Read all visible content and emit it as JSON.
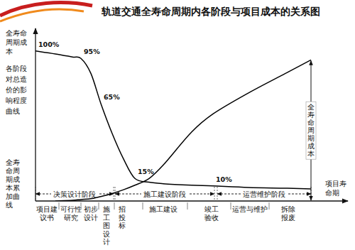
{
  "chart_data": {
    "type": "line",
    "title": "轨道交通全寿命周期内各阶段与项目成本的关系图",
    "y_label": "全寿命周期成本",
    "x_label": "项目寿命期",
    "x": [
      0,
      7,
      13,
      16,
      19.5,
      23,
      27,
      31,
      35,
      40,
      45,
      55,
      62.5,
      75,
      88,
      97
    ],
    "xlim": [
      0,
      110
    ],
    "ylim": [
      0,
      115
    ],
    "tick_labels": false,
    "data_labels": true,
    "series": [
      {
        "name": "各阶段对总造价的影响程度曲线",
        "color": "#000000",
        "line_style": "solid",
        "values": [
          100,
          98,
          96,
          95,
          85,
          65,
          45,
          28,
          15,
          12.5,
          11.5,
          10.5,
          10,
          9,
          8.5,
          8
        ],
        "value_labels": [
          "100%",
          null,
          null,
          "95%",
          null,
          "65%",
          null,
          null,
          "15%",
          null,
          null,
          null,
          "10%",
          null,
          null,
          null
        ]
      },
      {
        "name": "全寿命周期成本累加曲线",
        "color": "#000000",
        "line_style": "solid",
        "values": [
          null,
          0,
          0.5,
          1,
          1.5,
          3,
          5,
          7.5,
          10.5,
          15,
          24,
          46,
          58,
          72,
          85,
          94
        ]
      }
    ],
    "annotations": [
      {
        "text": "全寿命周期成本",
        "x": 97
      }
    ],
    "phases": [
      {
        "label": "决策设计阶段",
        "x_start": 0,
        "x_end": 27.5
      },
      {
        "label": "施工建设阶段",
        "x_start": 28,
        "x_end": 63
      },
      {
        "label": "运营维护阶段",
        "x_start": 64,
        "x_end": 97
      }
    ],
    "stages": [
      {
        "label": "项目建议书",
        "x": 4
      },
      {
        "label": "可行性研究",
        "x": 12.5
      },
      {
        "label": "初步设计",
        "x": 19.5
      },
      {
        "label": "施工图设计",
        "x": 25
      },
      {
        "label": "招投标",
        "x": 30.5
      },
      {
        "label": "施工建设",
        "x": 45
      },
      {
        "label": "竣工验收",
        "x": 62
      },
      {
        "label": "运营与维护",
        "x": 75.5
      },
      {
        "label": "拆除报废",
        "x": 89
      }
    ]
  }
}
